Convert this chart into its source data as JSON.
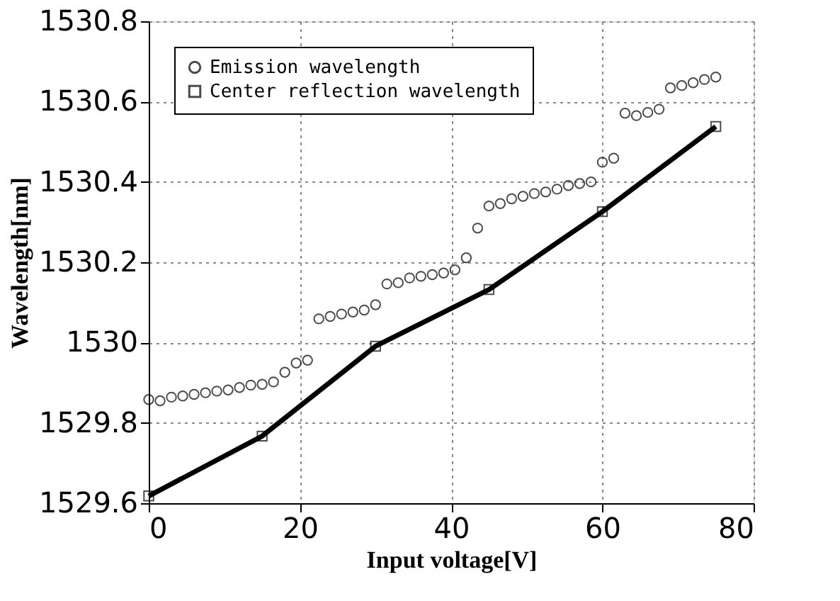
{
  "chart_data": {
    "type": "scatter",
    "xlabel": "Input voltage[V]",
    "ylabel": "Wavelength[nm]",
    "xlim": [
      0,
      80
    ],
    "xticks": [
      0,
      20,
      40,
      60,
      80
    ],
    "ylim": [
      1529.6,
      1530.8
    ],
    "yticks": [
      1529.6,
      1529.8,
      1530,
      1530.2,
      1530.4,
      1530.6,
      1530.8
    ],
    "grid": true,
    "legend": "top left",
    "series": [
      {
        "name": "Emission wavelength",
        "marker": "circle",
        "color": "#000000",
        "x": [
          0,
          1.5,
          3,
          4.5,
          6,
          7.5,
          9,
          10.5,
          12,
          13.5,
          15,
          16.5,
          18,
          19.5,
          21,
          22.5,
          24,
          25.5,
          27,
          28.5,
          30,
          31.5,
          33,
          34.5,
          36,
          37.5,
          39,
          40.5,
          42,
          43.5,
          45,
          46.5,
          48,
          49.5,
          51,
          52.5,
          54,
          55.5,
          57,
          58.5,
          60,
          61.5,
          63,
          64.5,
          66,
          67.5,
          69,
          70.5,
          72,
          73.5,
          75
        ],
        "values": [
          1529.858,
          1529.855,
          1529.864,
          1529.867,
          1529.871,
          1529.875,
          1529.879,
          1529.882,
          1529.888,
          1529.894,
          1529.896,
          1529.902,
          1529.926,
          1529.949,
          1529.956,
          1530.059,
          1530.065,
          1530.071,
          1530.076,
          1530.081,
          1530.094,
          1530.146,
          1530.149,
          1530.161,
          1530.165,
          1530.169,
          1530.173,
          1530.181,
          1530.211,
          1530.285,
          1530.34,
          1530.346,
          1530.358,
          1530.364,
          1530.371,
          1530.375,
          1530.382,
          1530.391,
          1530.396,
          1530.4,
          1530.449,
          1530.459,
          1530.571,
          1530.565,
          1530.573,
          1530.581,
          1530.634,
          1530.64,
          1530.647,
          1530.655,
          1530.661
        ]
      },
      {
        "name": "Center reflection wavelength",
        "type": "line",
        "marker": "square",
        "line_style": "solid",
        "color": "#000000",
        "x": [
          0,
          15,
          30,
          45,
          60,
          75
        ],
        "values": [
          1529.618,
          1529.767,
          1529.991,
          1530.132,
          1530.326,
          1530.538
        ]
      }
    ]
  }
}
